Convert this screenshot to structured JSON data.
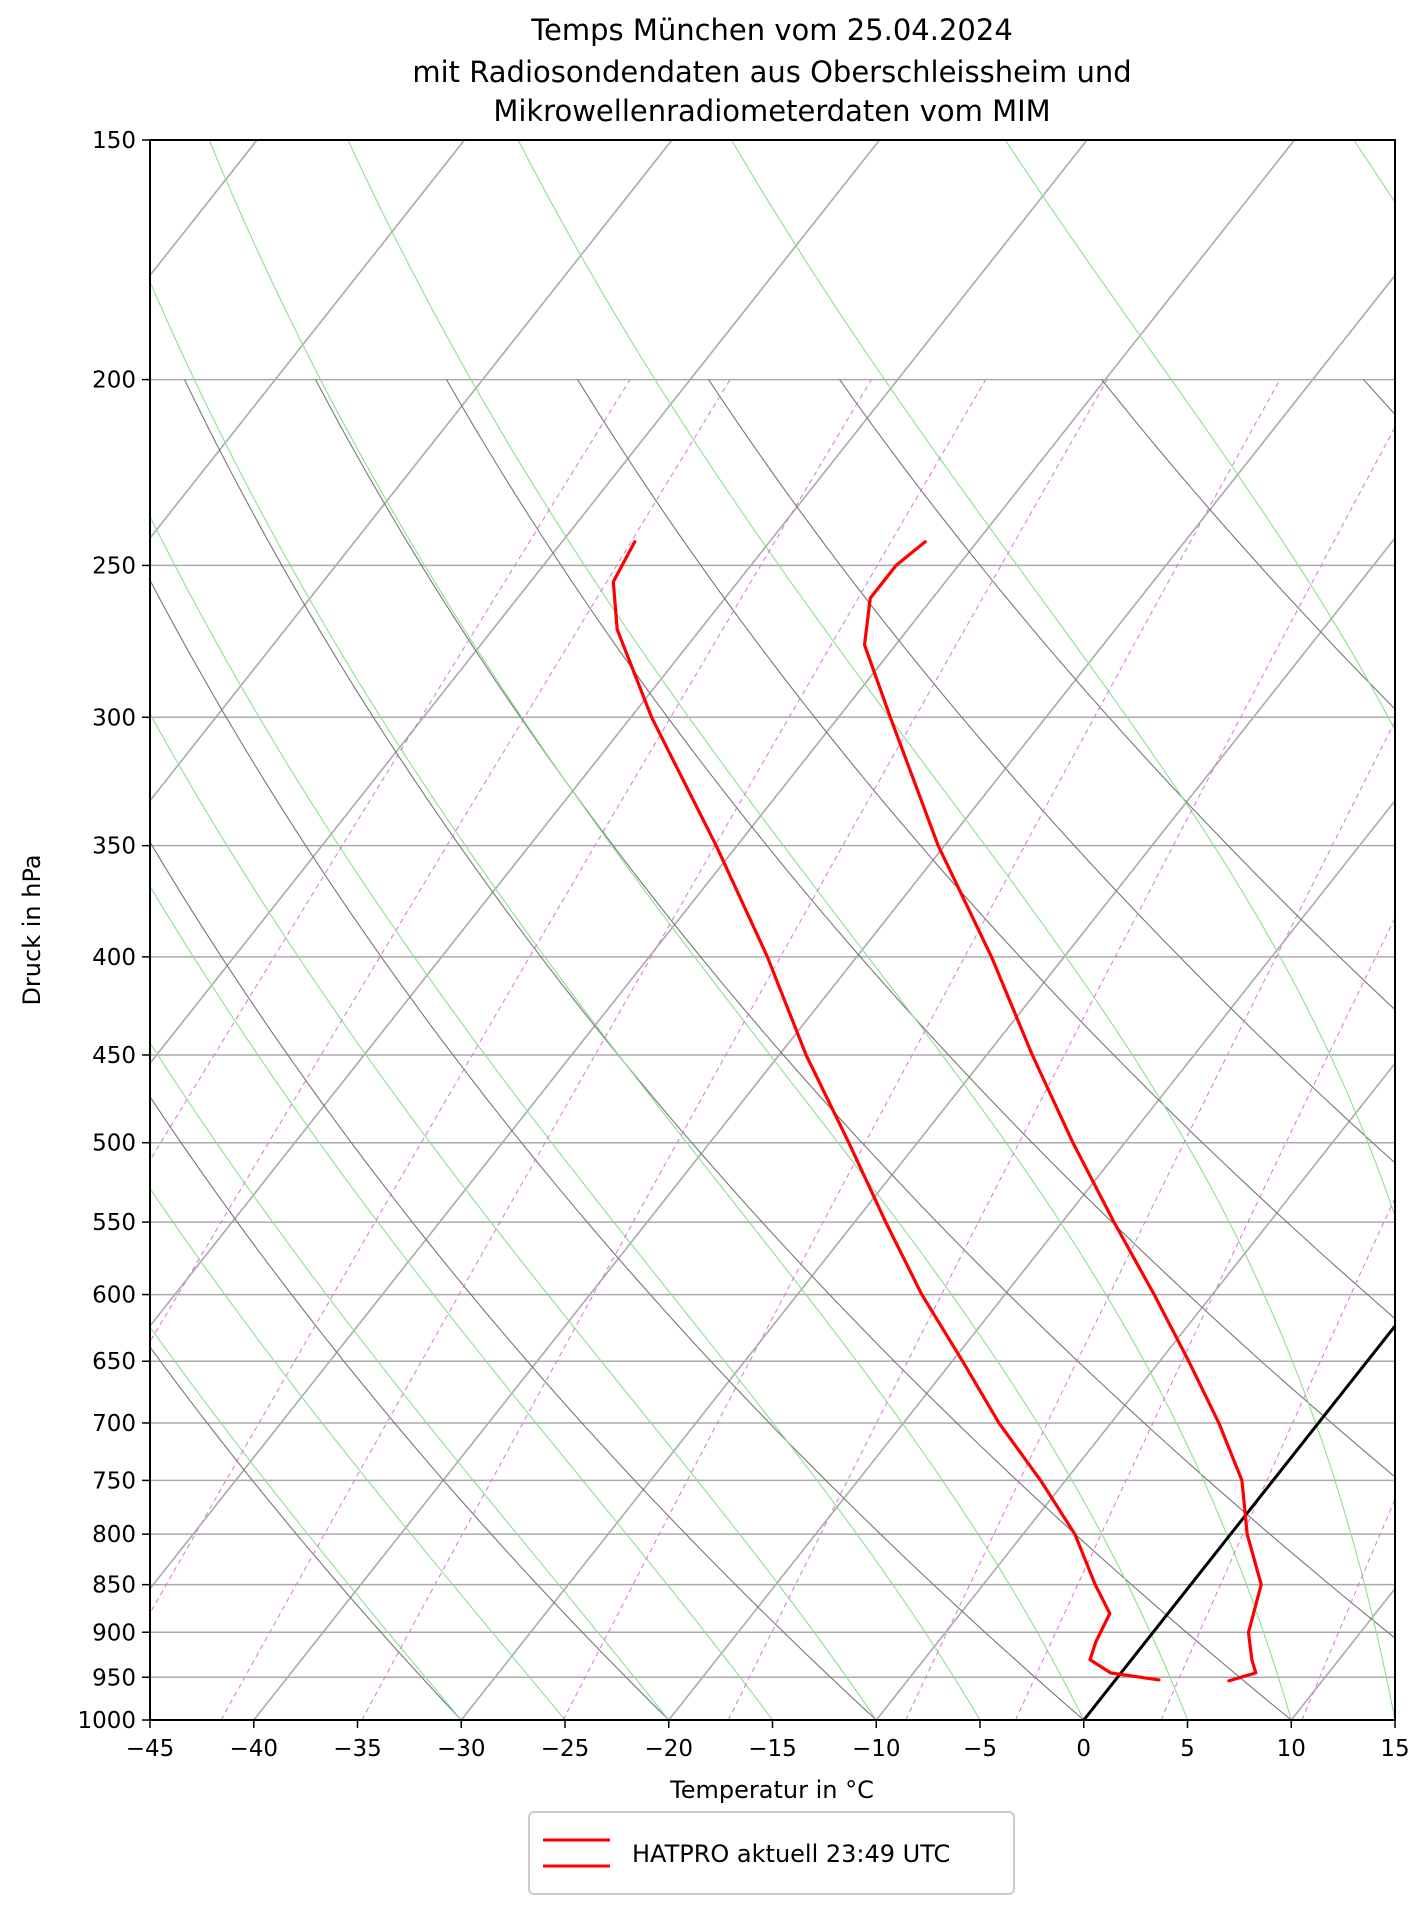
{
  "chart_data": {
    "type": "line",
    "title": [
      "Temps München vom 25.04.2024",
      "mit Radiosondendaten aus Oberschleissheim und",
      "Mikrowellenradiometerdaten vom MIM"
    ],
    "xlabel": "Temperatur in °C",
    "ylabel": "Druck in hPa",
    "xlim": [
      -45,
      15
    ],
    "ylim": [
      1000,
      150
    ],
    "yscale": "log",
    "skew": "skew-T log-p",
    "x_ticks": [
      -45,
      -40,
      -35,
      -30,
      -25,
      -20,
      -15,
      -10,
      -5,
      0,
      5,
      10,
      15
    ],
    "y_ticks": [
      1000,
      950,
      900,
      850,
      800,
      750,
      700,
      650,
      600,
      550,
      500,
      450,
      400,
      350,
      300,
      250,
      200,
      150
    ],
    "grid": true,
    "legend": {
      "placement": "bottom-center",
      "entries": [
        "HATPRO aktuell 23:49 UTC"
      ]
    },
    "colors": {
      "profile": "#ff0000",
      "isotherm_zero": "#000000",
      "isotherms": "#aaaaaa",
      "dry_adiabats": "#777777",
      "moist_adiabats": "#8de08d",
      "mixing_ratio": "#e070e0"
    },
    "series": [
      {
        "name": "HATPRO aktuell 23:49 UTC",
        "kind": "temperature",
        "points": [
          {
            "p": 954,
            "t": 5.5
          },
          {
            "p": 945,
            "t": 6.5
          },
          {
            "p": 930,
            "t": 5.8
          },
          {
            "p": 900,
            "t": 4.6
          },
          {
            "p": 850,
            "t": 3.4
          },
          {
            "p": 800,
            "t": 0.8
          },
          {
            "p": 750,
            "t": -1.5
          },
          {
            "p": 700,
            "t": -4.8
          },
          {
            "p": 650,
            "t": -8.6
          },
          {
            "p": 600,
            "t": -12.8
          },
          {
            "p": 550,
            "t": -17.5
          },
          {
            "p": 500,
            "t": -22.5
          },
          {
            "p": 450,
            "t": -27.8
          },
          {
            "p": 400,
            "t": -33.5
          },
          {
            "p": 350,
            "t": -40.3
          },
          {
            "p": 300,
            "t": -47.5
          },
          {
            "p": 275,
            "t": -51.5
          },
          {
            "p": 260,
            "t": -53.0
          },
          {
            "p": 250,
            "t": -53.0
          },
          {
            "p": 243,
            "t": -52.5
          }
        ]
      },
      {
        "name": "HATPRO aktuell 23:49 UTC",
        "kind": "dewpoint",
        "points": [
          {
            "p": 953,
            "t": 2.1
          },
          {
            "p": 945,
            "t": -0.5
          },
          {
            "p": 930,
            "t": -2.0
          },
          {
            "p": 910,
            "t": -2.4
          },
          {
            "p": 880,
            "t": -2.8
          },
          {
            "p": 850,
            "t": -4.6
          },
          {
            "p": 800,
            "t": -7.5
          },
          {
            "p": 750,
            "t": -11.2
          },
          {
            "p": 700,
            "t": -15.4
          },
          {
            "p": 650,
            "t": -19.5
          },
          {
            "p": 600,
            "t": -24.0
          },
          {
            "p": 550,
            "t": -28.5
          },
          {
            "p": 500,
            "t": -33.3
          },
          {
            "p": 450,
            "t": -38.7
          },
          {
            "p": 400,
            "t": -44.3
          },
          {
            "p": 350,
            "t": -51.0
          },
          {
            "p": 300,
            "t": -59.0
          },
          {
            "p": 270,
            "t": -64.0
          },
          {
            "p": 255,
            "t": -66.0
          },
          {
            "p": 243,
            "t": -66.5
          }
        ]
      }
    ]
  }
}
